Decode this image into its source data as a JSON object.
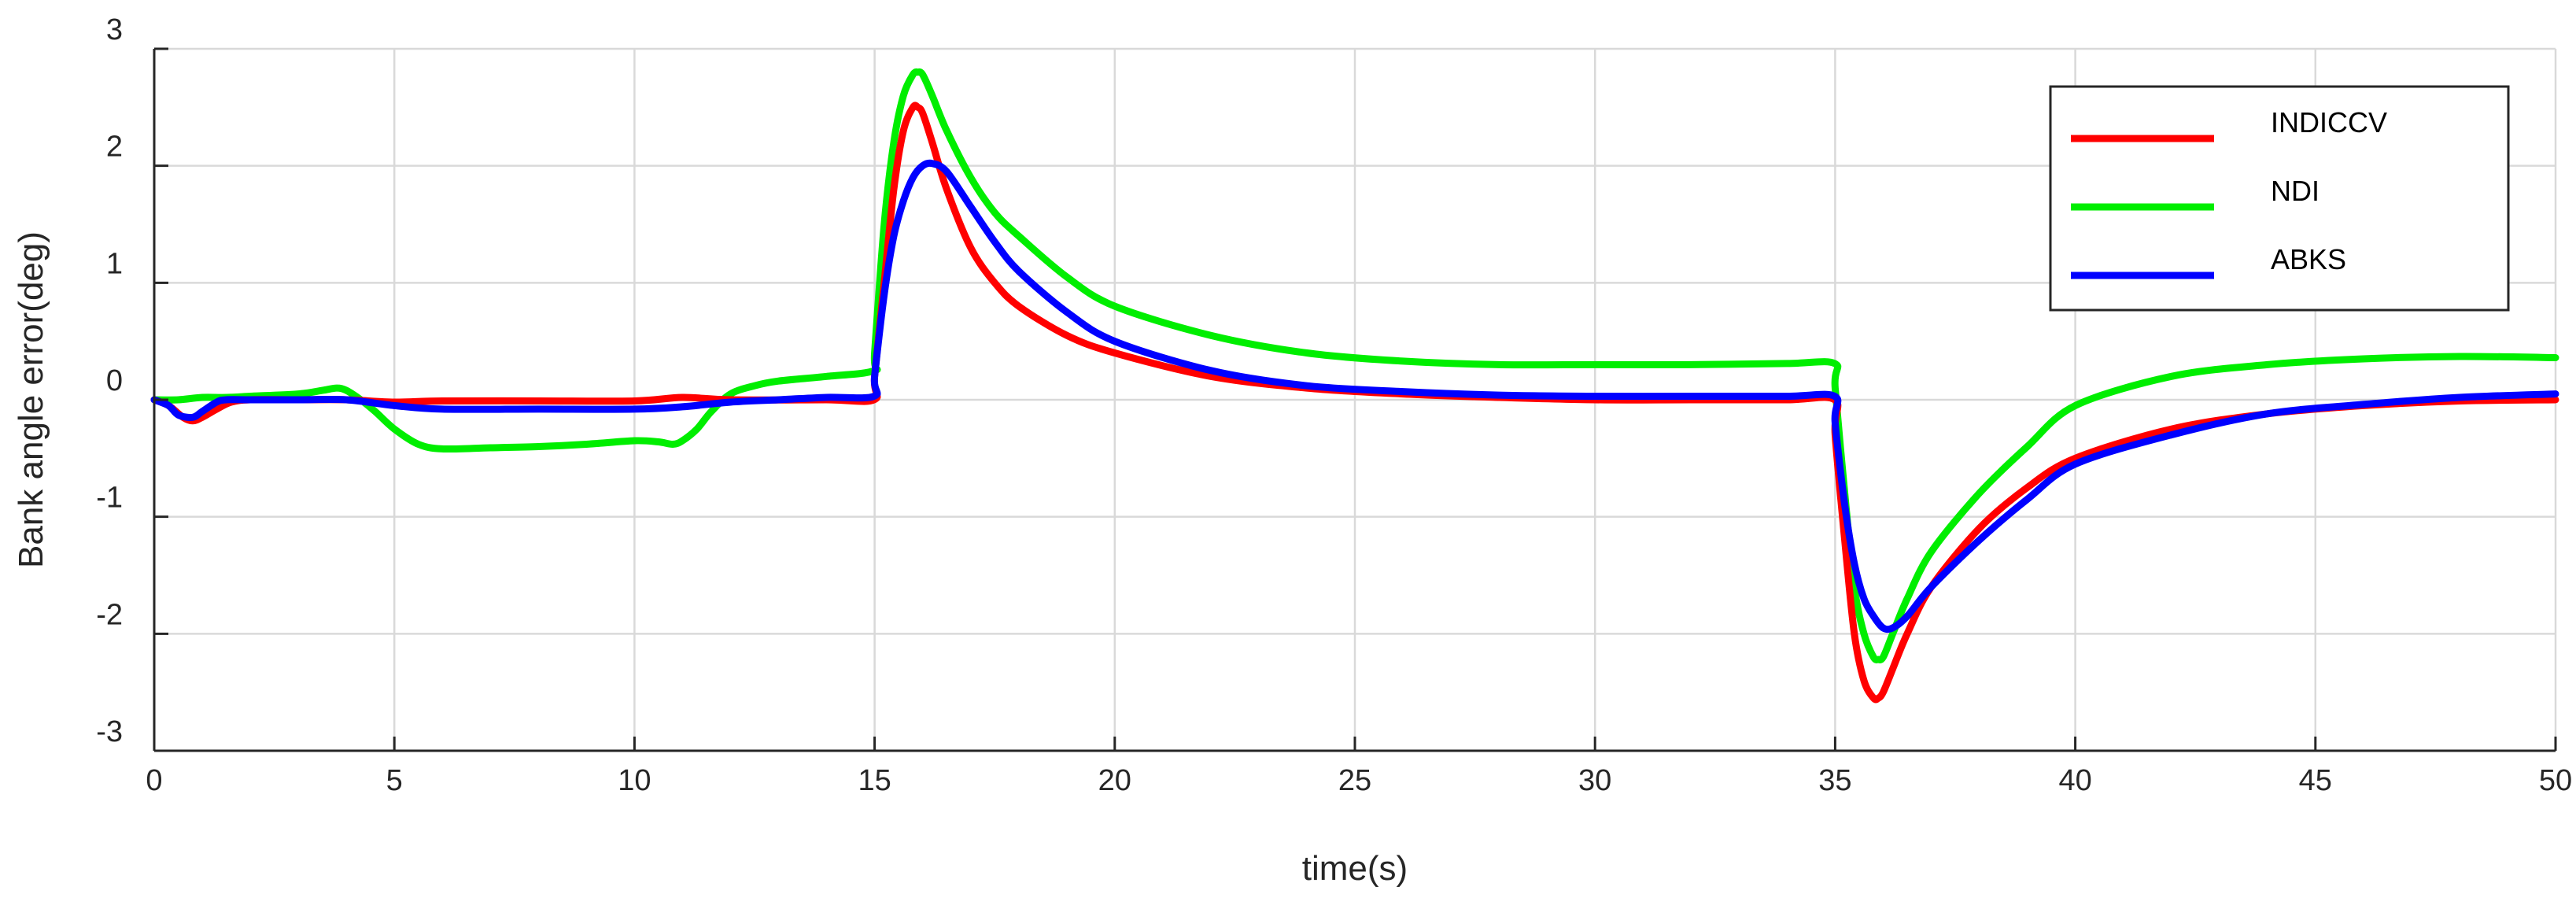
{
  "chart_data": {
    "type": "line",
    "xlabel": "time(s)",
    "ylabel": "Bank angle error(deg)",
    "xlim": [
      0,
      50
    ],
    "ylim": [
      -3,
      3
    ],
    "xticks": [
      0,
      5,
      10,
      15,
      20,
      25,
      30,
      35,
      40,
      45,
      50
    ],
    "yticks": [
      -3,
      -2,
      -1,
      0,
      1,
      2,
      3
    ],
    "grid": true,
    "legend_position": "top-right",
    "series": [
      {
        "name": "INDICCV",
        "color": "#ff0000",
        "x": [
          0,
          0.3,
          0.6,
          0.8,
          1.0,
          1.3,
          1.6,
          2,
          3,
          4,
          5,
          6,
          8,
          10,
          11,
          12,
          14,
          14.99,
          15.0,
          15.2,
          15.4,
          15.6,
          15.8,
          15.9,
          16.0,
          16.2,
          16.5,
          17,
          17.5,
          18,
          19,
          20,
          22,
          24,
          26,
          28,
          30,
          32,
          34,
          34.99,
          35.0,
          35.2,
          35.4,
          35.6,
          35.8,
          35.9,
          36.0,
          36.2,
          36.5,
          37,
          38,
          39,
          40,
          42,
          44,
          46,
          48,
          50
        ],
        "y": [
          0,
          -0.05,
          -0.15,
          -0.18,
          -0.15,
          -0.08,
          -0.02,
          0,
          0,
          0,
          -0.02,
          -0.01,
          -0.01,
          -0.01,
          0.02,
          0,
          0,
          0,
          0.2,
          1.0,
          1.8,
          2.3,
          2.5,
          2.5,
          2.45,
          2.2,
          1.8,
          1.3,
          1.0,
          0.8,
          0.55,
          0.4,
          0.2,
          0.1,
          0.05,
          0.02,
          0,
          0,
          0,
          0,
          -0.3,
          -1.2,
          -2.0,
          -2.4,
          -2.55,
          -2.55,
          -2.5,
          -2.3,
          -2.0,
          -1.6,
          -1.1,
          -0.75,
          -0.5,
          -0.25,
          -0.12,
          -0.05,
          -0.01,
          0
        ]
      },
      {
        "name": "NDI",
        "color": "#00ee00",
        "x": [
          0,
          0.5,
          1.0,
          1.5,
          2,
          3,
          3.5,
          3.8,
          4,
          4.3,
          4.6,
          5,
          5.5,
          6,
          7,
          8,
          9,
          10,
          10.5,
          10.8,
          11,
          11.3,
          11.6,
          12,
          12.5,
          13,
          14,
          14.99,
          15.0,
          15.2,
          15.4,
          15.6,
          15.8,
          15.9,
          16.0,
          16.2,
          16.5,
          17,
          17.5,
          18,
          19,
          20,
          22,
          24,
          26,
          28,
          30,
          32,
          34,
          34.99,
          35.0,
          35.2,
          35.4,
          35.6,
          35.8,
          35.9,
          36.0,
          36.2,
          36.5,
          37,
          38,
          39,
          40,
          42,
          44,
          46,
          48,
          50
        ],
        "y": [
          0,
          0,
          0.02,
          0.02,
          0.03,
          0.05,
          0.08,
          0.1,
          0.08,
          0,
          -0.1,
          -0.25,
          -0.38,
          -0.42,
          -0.41,
          -0.4,
          -0.38,
          -0.35,
          -0.36,
          -0.38,
          -0.35,
          -0.25,
          -0.1,
          0.05,
          0.12,
          0.16,
          0.2,
          0.25,
          0.4,
          1.5,
          2.2,
          2.6,
          2.78,
          2.8,
          2.78,
          2.6,
          2.3,
          1.9,
          1.6,
          1.4,
          1.05,
          0.8,
          0.55,
          0.4,
          0.33,
          0.3,
          0.3,
          0.3,
          0.31,
          0.31,
          0.1,
          -0.8,
          -1.6,
          -2.0,
          -2.2,
          -2.22,
          -2.2,
          -2.0,
          -1.7,
          -1.3,
          -0.8,
          -0.4,
          -0.05,
          0.2,
          0.3,
          0.35,
          0.37,
          0.36
        ]
      },
      {
        "name": "ABKS",
        "color": "#0000ff",
        "x": [
          0,
          0.3,
          0.5,
          0.8,
          1.0,
          1.3,
          1.5,
          2,
          3,
          4,
          5,
          6,
          8,
          10,
          11,
          12,
          13,
          14,
          14.99,
          15.0,
          15.2,
          15.4,
          15.6,
          15.8,
          16.0,
          16.2,
          16.5,
          17,
          17.5,
          18,
          19,
          20,
          22,
          24,
          26,
          28,
          30,
          32,
          34,
          34.99,
          35.0,
          35.2,
          35.4,
          35.6,
          35.8,
          36.0,
          36.2,
          36.5,
          37,
          38,
          39,
          40,
          42,
          44,
          46,
          48,
          50
        ],
        "y": [
          0,
          -0.05,
          -0.13,
          -0.15,
          -0.1,
          -0.02,
          0,
          0,
          0,
          0,
          -0.05,
          -0.08,
          -0.08,
          -0.08,
          -0.06,
          -0.02,
          0,
          0.02,
          0.03,
          0.2,
          0.9,
          1.4,
          1.7,
          1.9,
          2.0,
          2.02,
          1.95,
          1.65,
          1.35,
          1.1,
          0.75,
          0.5,
          0.25,
          0.12,
          0.07,
          0.04,
          0.03,
          0.03,
          0.03,
          0.03,
          -0.2,
          -0.9,
          -1.4,
          -1.7,
          -1.85,
          -1.95,
          -1.95,
          -1.85,
          -1.6,
          -1.2,
          -0.85,
          -0.55,
          -0.3,
          -0.12,
          -0.04,
          0.02,
          0.05
        ]
      }
    ]
  }
}
